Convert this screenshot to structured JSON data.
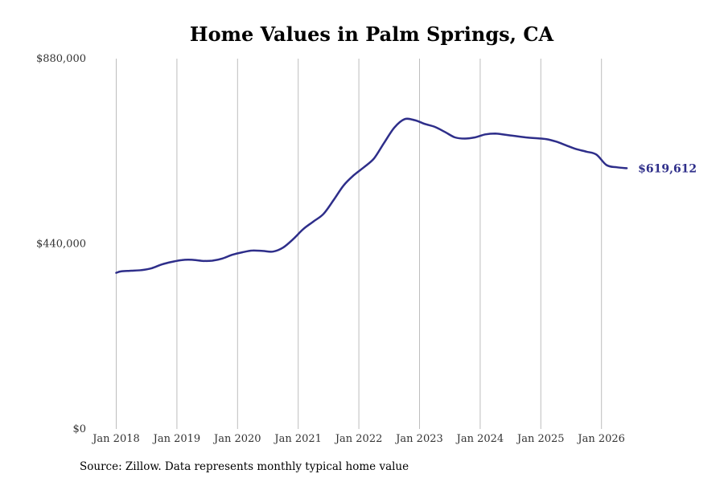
{
  "chart_data": {
    "type": "line",
    "title": "Home Values in Palm Springs, CA",
    "xlabel": "",
    "ylabel": "",
    "ylim": [
      0,
      880000
    ],
    "y_ticks": [
      0,
      440000,
      880000
    ],
    "y_tick_labels": [
      "$0",
      "$440,000",
      "$880,000"
    ],
    "x_tick_labels": [
      "Jan 2018",
      "Jan 2019",
      "Jan 2020",
      "Jan 2021",
      "Jan 2022",
      "Jan 2023",
      "Jan 2024",
      "Jan 2025",
      "Jan 2026"
    ],
    "x_range": [
      "2018-01",
      "2026-06"
    ],
    "grid": "vertical",
    "line_color": "#2e2e8a",
    "end_label": "$619,612",
    "series": [
      {
        "points": [
          [
            "2018-01",
            371000
          ],
          [
            "2018-02",
            374500
          ],
          [
            "2018-04",
            376000
          ],
          [
            "2018-06",
            377500
          ],
          [
            "2018-08",
            382000
          ],
          [
            "2018-10",
            391000
          ],
          [
            "2018-12",
            397000
          ],
          [
            "2019-02",
            401500
          ],
          [
            "2019-04",
            402000
          ],
          [
            "2019-06",
            399500
          ],
          [
            "2019-08",
            400000
          ],
          [
            "2019-10",
            405000
          ],
          [
            "2019-12",
            414000
          ],
          [
            "2020-02",
            420000
          ],
          [
            "2020-04",
            424000
          ],
          [
            "2020-06",
            423000
          ],
          [
            "2020-08",
            421500
          ],
          [
            "2020-10",
            431000
          ],
          [
            "2020-12",
            451000
          ],
          [
            "2021-02",
            475000
          ],
          [
            "2021-04",
            493000
          ],
          [
            "2021-06",
            511000
          ],
          [
            "2021-08",
            544000
          ],
          [
            "2021-10",
            579000
          ],
          [
            "2021-12",
            603000
          ],
          [
            "2022-02",
            622000
          ],
          [
            "2022-04",
            643000
          ],
          [
            "2022-06",
            680000
          ],
          [
            "2022-08",
            716000
          ],
          [
            "2022-10",
            736000
          ],
          [
            "2022-12",
            734000
          ],
          [
            "2023-02",
            725000
          ],
          [
            "2023-04",
            718000
          ],
          [
            "2023-06",
            706000
          ],
          [
            "2023-08",
            693000
          ],
          [
            "2023-10",
            690000
          ],
          [
            "2023-12",
            693000
          ],
          [
            "2024-02",
            700000
          ],
          [
            "2024-04",
            702000
          ],
          [
            "2024-06",
            699000
          ],
          [
            "2024-08",
            696000
          ],
          [
            "2024-10",
            693000
          ],
          [
            "2024-12",
            691000
          ],
          [
            "2025-02",
            689000
          ],
          [
            "2025-04",
            683000
          ],
          [
            "2025-06",
            674000
          ],
          [
            "2025-08",
            665000
          ],
          [
            "2025-10",
            659000
          ],
          [
            "2025-12",
            652000
          ],
          [
            "2026-02",
            627000
          ],
          [
            "2026-04",
            622000
          ],
          [
            "2026-06",
            619612
          ]
        ]
      }
    ]
  },
  "footer": {
    "source": "Source: Zillow. Data represents monthly typical home value"
  }
}
